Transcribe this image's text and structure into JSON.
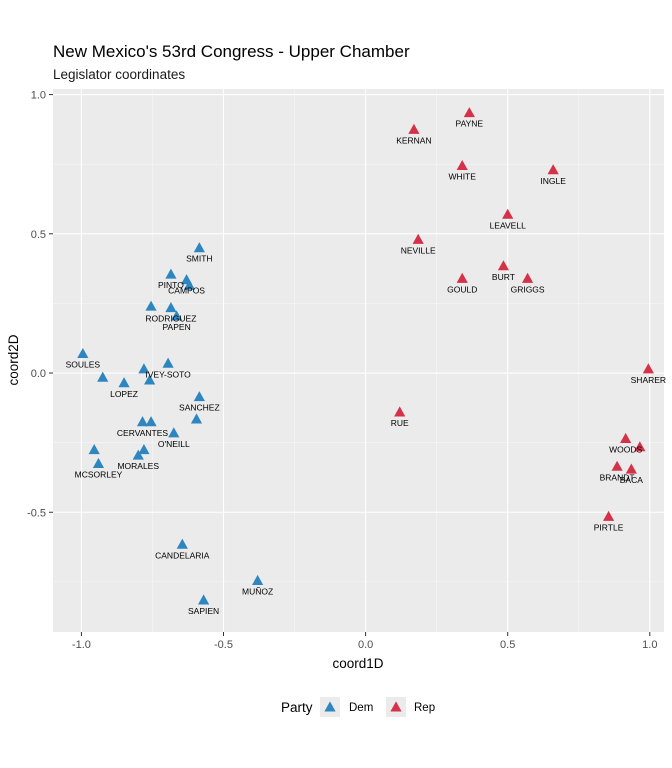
{
  "chart_data": {
    "type": "scatter",
    "title": "New Mexico's 53rd Congress - Upper Chamber",
    "subtitle": "Legislator coordinates",
    "xlabel": "coord1D",
    "ylabel": "coord2D",
    "xlim": [
      -1.1,
      1.05
    ],
    "ylim": [
      -0.93,
      1.02
    ],
    "x_ticks": [
      -1.0,
      -0.5,
      0.0,
      0.5,
      1.0
    ],
    "x_tick_labels": [
      "-1.0",
      "-0.5",
      "0.0",
      "0.5",
      "1.0"
    ],
    "y_ticks": [
      -0.5,
      0.0,
      0.5,
      1.0
    ],
    "y_tick_labels": [
      "-0.5",
      "0.0",
      "0.5",
      "1.0"
    ],
    "grid": true,
    "marker": "triangle",
    "legend": {
      "title": "Party",
      "position": "bottom",
      "entries": [
        {
          "label": "Dem",
          "color": "#2E86C1"
        },
        {
          "label": "Rep",
          "color": "#D5324A"
        }
      ]
    },
    "series": [
      {
        "name": "Dem",
        "color": "#2E86C1",
        "points": [
          {
            "label": "SMITH",
            "x": -0.585,
            "y": 0.45
          },
          {
            "label": "PINTO",
            "x": -0.685,
            "y": 0.355
          },
          {
            "label": "CAMPOS",
            "x": -0.63,
            "y": 0.335
          },
          {
            "label": "",
            "x": -0.62,
            "y": 0.315
          },
          {
            "label": "",
            "x": -0.755,
            "y": 0.24
          },
          {
            "label": "RODRIGUEZ",
            "x": -0.685,
            "y": 0.235
          },
          {
            "label": "PAPEN",
            "x": -0.665,
            "y": 0.205
          },
          {
            "label": "SOULES",
            "x": -0.995,
            "y": 0.07
          },
          {
            "label": "IVEY-SOTO",
            "x": -0.695,
            "y": 0.035
          },
          {
            "label": "",
            "x": -0.78,
            "y": 0.015
          },
          {
            "label": "",
            "x": -0.925,
            "y": -0.015
          },
          {
            "label": "",
            "x": -0.76,
            "y": -0.025
          },
          {
            "label": "LOPEZ",
            "x": -0.85,
            "y": -0.035
          },
          {
            "label": "SANCHEZ",
            "x": -0.585,
            "y": -0.085
          },
          {
            "label": "",
            "x": -0.595,
            "y": -0.165
          },
          {
            "label": "CERVANTES",
            "x": -0.785,
            "y": -0.175
          },
          {
            "label": "",
            "x": -0.755,
            "y": -0.175
          },
          {
            "label": "O'NEILL",
            "x": -0.675,
            "y": -0.215
          },
          {
            "label": "",
            "x": -0.955,
            "y": -0.275
          },
          {
            "label": "",
            "x": -0.78,
            "y": -0.275
          },
          {
            "label": "MORALES",
            "x": -0.8,
            "y": -0.295
          },
          {
            "label": "MCSORLEY",
            "x": -0.94,
            "y": -0.325
          },
          {
            "label": "CANDELARIA",
            "x": -0.645,
            "y": -0.615
          },
          {
            "label": "MUÑOZ",
            "x": -0.38,
            "y": -0.745
          },
          {
            "label": "SAPIEN",
            "x": -0.57,
            "y": -0.815
          }
        ]
      },
      {
        "name": "Rep",
        "color": "#D5324A",
        "points": [
          {
            "label": "PAYNE",
            "x": 0.365,
            "y": 0.935
          },
          {
            "label": "KERNAN",
            "x": 0.17,
            "y": 0.875
          },
          {
            "label": "WHITE",
            "x": 0.34,
            "y": 0.745
          },
          {
            "label": "INGLE",
            "x": 0.66,
            "y": 0.73
          },
          {
            "label": "LEAVELL",
            "x": 0.5,
            "y": 0.57
          },
          {
            "label": "NEVILLE",
            "x": 0.185,
            "y": 0.48
          },
          {
            "label": "BURT",
            "x": 0.485,
            "y": 0.385
          },
          {
            "label": "GOULD",
            "x": 0.34,
            "y": 0.34
          },
          {
            "label": "GRIGGS",
            "x": 0.57,
            "y": 0.34
          },
          {
            "label": "SHARER",
            "x": 0.995,
            "y": 0.015
          },
          {
            "label": "RUE",
            "x": 0.12,
            "y": -0.14
          },
          {
            "label": "WOODS",
            "x": 0.915,
            "y": -0.235
          },
          {
            "label": "",
            "x": 0.965,
            "y": -0.265
          },
          {
            "label": "BRANDT",
            "x": 0.885,
            "y": -0.335
          },
          {
            "label": "BACA",
            "x": 0.935,
            "y": -0.345
          },
          {
            "label": "PIRTLE",
            "x": 0.855,
            "y": -0.515
          }
        ]
      }
    ]
  }
}
